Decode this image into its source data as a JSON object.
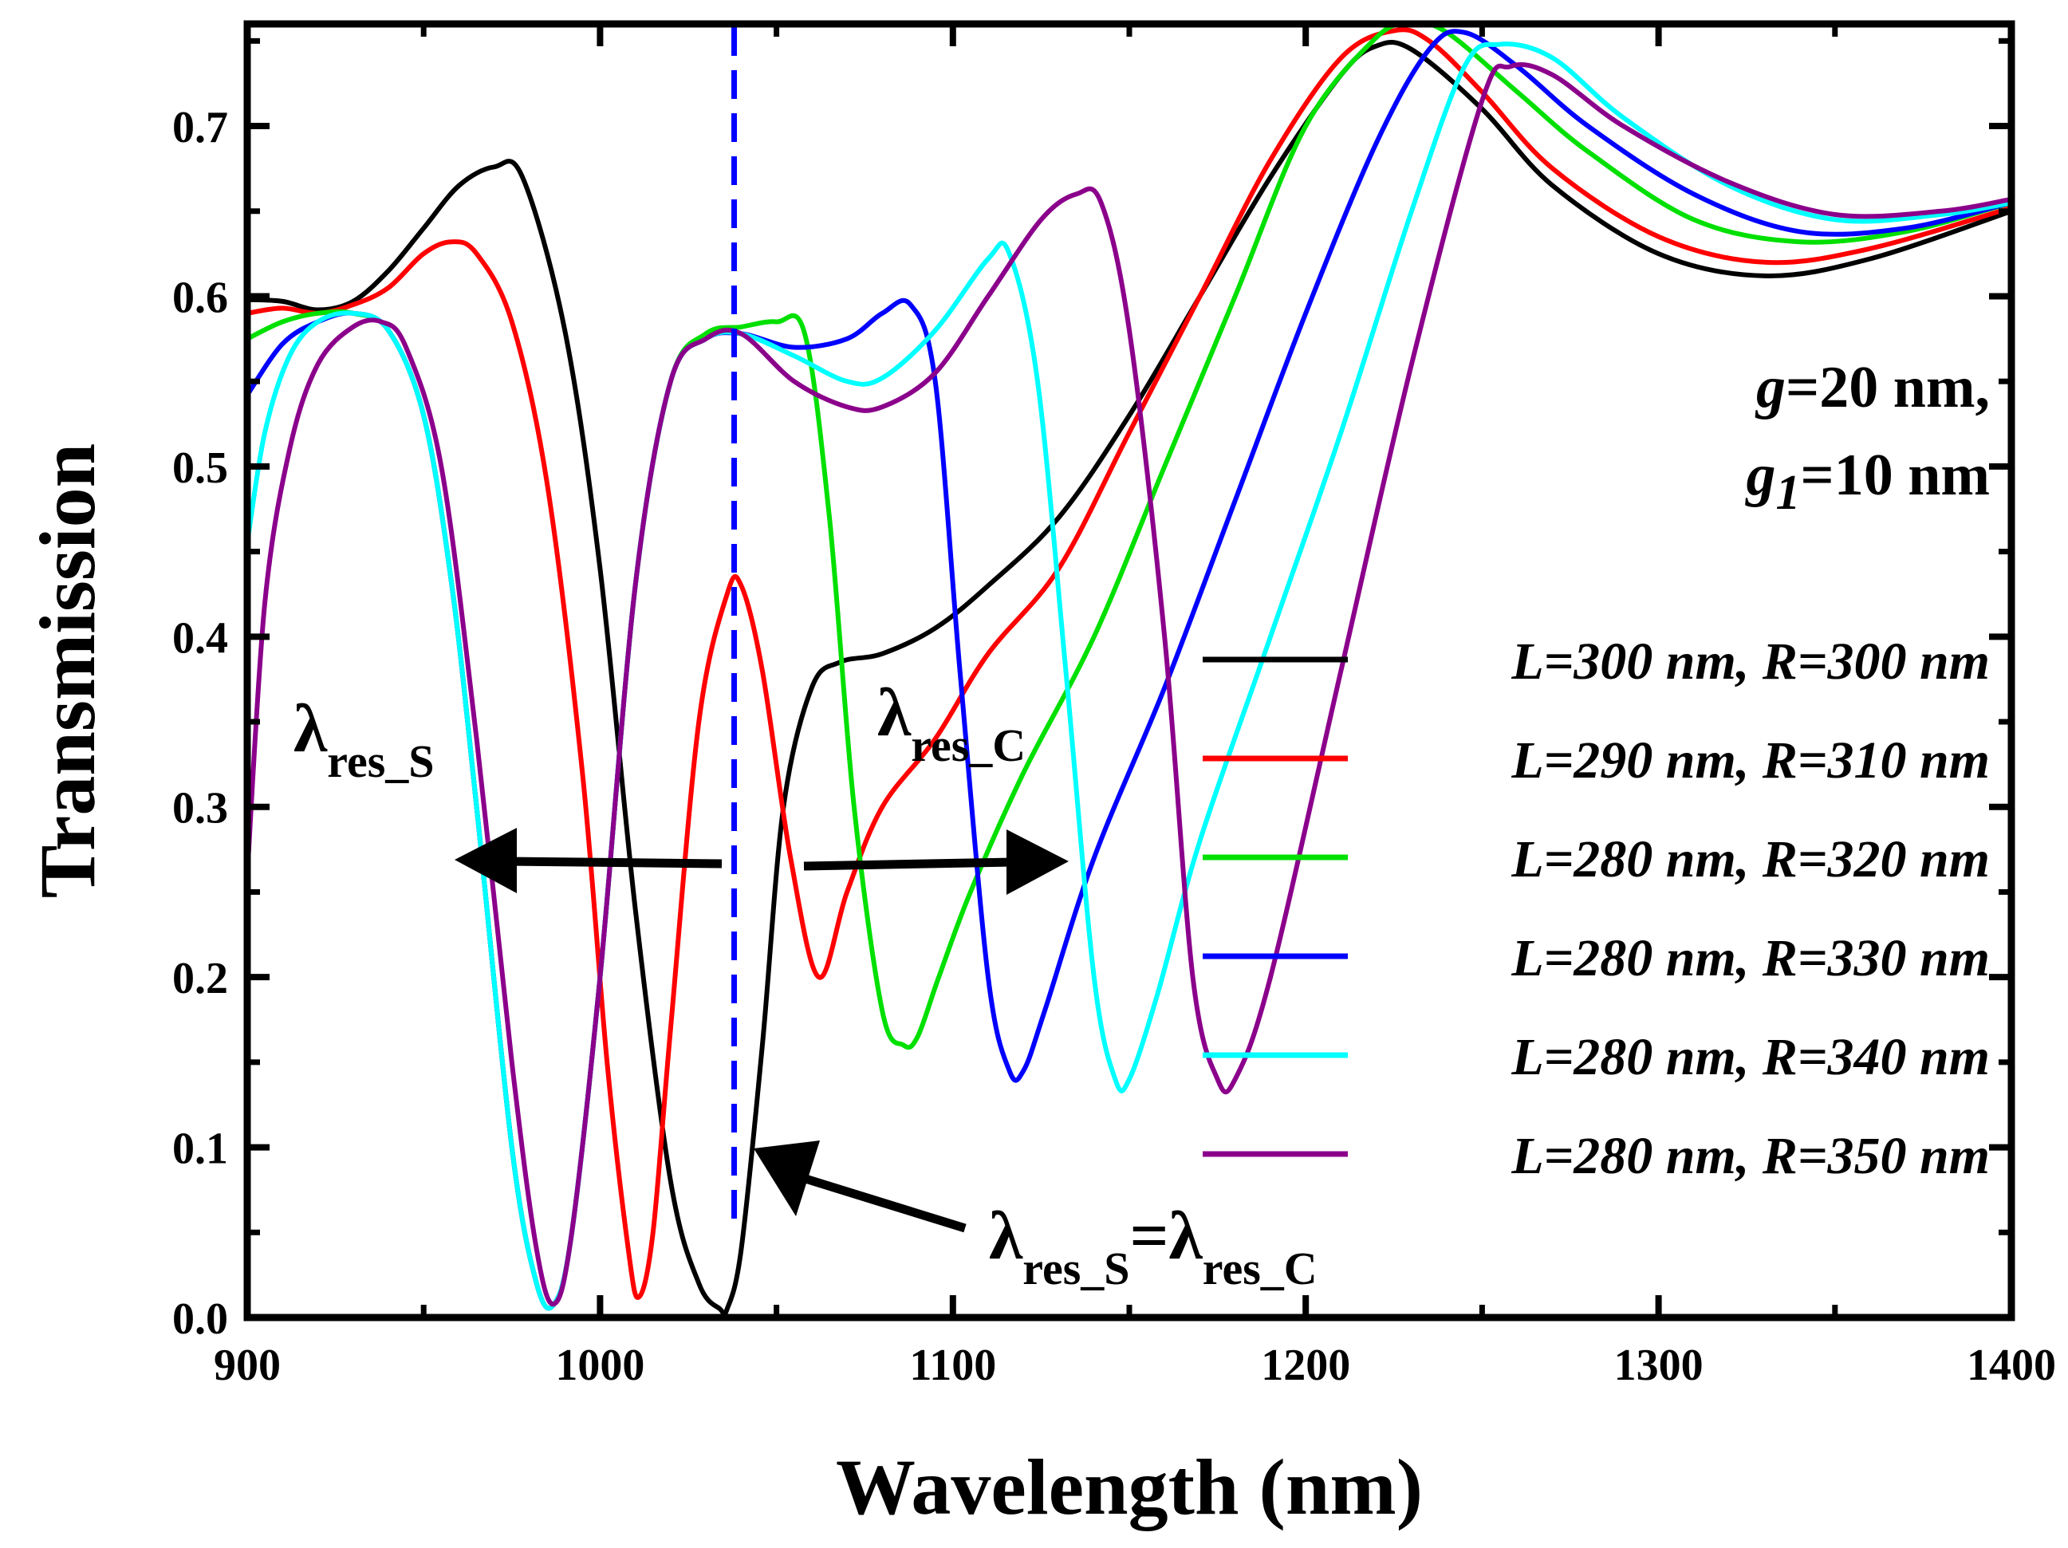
{
  "chart_data": {
    "type": "line",
    "title": "",
    "xlabel": "Wavelength (nm)",
    "ylabel": "Transmission",
    "xlim": [
      900,
      1400
    ],
    "ylim": [
      0.0,
      0.76
    ],
    "xticks": [
      900,
      1000,
      1100,
      1200,
      1300,
      1400
    ],
    "yticks": [
      0.0,
      0.1,
      0.2,
      0.3,
      0.4,
      0.5,
      0.6,
      0.7
    ],
    "grid": false,
    "legend_position": "right",
    "series": [
      {
        "name": "L=300 nm, R=300 nm",
        "color": "#000000",
        "x": [
          900,
          910,
          920,
          930,
          940,
          950,
          960,
          970,
          978,
          990,
          1000,
          1010,
          1020,
          1028,
          1034,
          1036,
          1040,
          1046,
          1052,
          1060,
          1068,
          1080,
          1095,
          1110,
          1130,
          1150,
          1170,
          1190,
          1210,
          1220,
          1230,
          1250,
          1270,
          1300,
          1330,
          1360,
          1400
        ],
        "y": [
          0.598,
          0.597,
          0.592,
          0.597,
          0.615,
          0.64,
          0.665,
          0.676,
          0.67,
          0.58,
          0.44,
          0.24,
          0.08,
          0.02,
          0.005,
          0.005,
          0.04,
          0.16,
          0.3,
          0.37,
          0.385,
          0.39,
          0.405,
          0.43,
          0.47,
          0.53,
          0.6,
          0.67,
          0.73,
          0.747,
          0.745,
          0.71,
          0.665,
          0.625,
          0.612,
          0.622,
          0.65
        ]
      },
      {
        "name": "L=290 nm, R=310 nm",
        "color": "#FF0000",
        "x": [
          900,
          910,
          920,
          930,
          940,
          950,
          958,
          965,
          975,
          985,
          995,
          1002,
          1008,
          1011,
          1015,
          1020,
          1028,
          1036,
          1040,
          1046,
          1054,
          1062,
          1070,
          1080,
          1095,
          1110,
          1130,
          1150,
          1170,
          1190,
          1210,
          1225,
          1235,
          1250,
          1270,
          1300,
          1330,
          1360,
          1400
        ],
        "y": [
          0.59,
          0.593,
          0.59,
          0.595,
          0.605,
          0.625,
          0.632,
          0.625,
          0.585,
          0.49,
          0.32,
          0.15,
          0.04,
          0.012,
          0.05,
          0.17,
          0.35,
          0.425,
          0.43,
          0.38,
          0.27,
          0.2,
          0.25,
          0.3,
          0.34,
          0.39,
          0.44,
          0.52,
          0.6,
          0.68,
          0.74,
          0.756,
          0.75,
          0.72,
          0.675,
          0.635,
          0.62,
          0.628,
          0.652
        ]
      },
      {
        "name": "L=280 nm, R=320 nm",
        "color": "#00E000",
        "x": [
          900,
          910,
          920,
          930,
          940,
          950,
          958,
          965,
          975,
          982,
          987,
          992,
          1000,
          1010,
          1020,
          1030,
          1040,
          1050,
          1058,
          1065,
          1072,
          1080,
          1086,
          1090,
          1096,
          1105,
          1120,
          1140,
          1160,
          1180,
          1200,
          1220,
          1230,
          1240,
          1260,
          1280,
          1310,
          1340,
          1370,
          1400
        ],
        "y": [
          0.575,
          0.585,
          0.59,
          0.59,
          0.58,
          0.53,
          0.43,
          0.3,
          0.1,
          0.02,
          0.008,
          0.05,
          0.2,
          0.43,
          0.55,
          0.578,
          0.582,
          0.585,
          0.578,
          0.47,
          0.3,
          0.18,
          0.16,
          0.165,
          0.2,
          0.25,
          0.32,
          0.4,
          0.5,
          0.6,
          0.7,
          0.752,
          0.76,
          0.755,
          0.72,
          0.685,
          0.645,
          0.632,
          0.638,
          0.655
        ]
      },
      {
        "name": "L=280 nm, R=330 nm",
        "color": "#0000FF",
        "x": [
          900,
          910,
          920,
          930,
          940,
          950,
          958,
          965,
          975,
          982,
          987,
          992,
          1000,
          1010,
          1020,
          1030,
          1040,
          1055,
          1070,
          1080,
          1088,
          1095,
          1102,
          1110,
          1116,
          1120,
          1126,
          1140,
          1160,
          1180,
          1200,
          1220,
          1235,
          1245,
          1260,
          1280,
          1310,
          1340,
          1370,
          1400
        ],
        "y": [
          0.542,
          0.572,
          0.585,
          0.59,
          0.58,
          0.53,
          0.43,
          0.3,
          0.1,
          0.02,
          0.008,
          0.05,
          0.2,
          0.43,
          0.55,
          0.575,
          0.578,
          0.57,
          0.575,
          0.59,
          0.595,
          0.55,
          0.38,
          0.2,
          0.145,
          0.145,
          0.18,
          0.27,
          0.37,
          0.48,
          0.59,
          0.69,
          0.745,
          0.755,
          0.735,
          0.7,
          0.66,
          0.638,
          0.64,
          0.655
        ]
      },
      {
        "name": "L=280 nm, R=340 nm",
        "color": "#00FFFF",
        "x": [
          900,
          905,
          912,
          920,
          930,
          940,
          950,
          958,
          965,
          975,
          982,
          987,
          992,
          1000,
          1010,
          1020,
          1030,
          1040,
          1055,
          1070,
          1080,
          1095,
          1110,
          1116,
          1124,
          1132,
          1140,
          1146,
          1150,
          1158,
          1170,
          1190,
          1210,
          1230,
          1245,
          1255,
          1270,
          1290,
          1320,
          1350,
          1380,
          1400
        ],
        "y": [
          0.455,
          0.52,
          0.565,
          0.585,
          0.59,
          0.58,
          0.53,
          0.43,
          0.3,
          0.1,
          0.02,
          0.008,
          0.05,
          0.2,
          0.43,
          0.55,
          0.575,
          0.578,
          0.565,
          0.55,
          0.552,
          0.58,
          0.622,
          0.625,
          0.55,
          0.38,
          0.2,
          0.14,
          0.14,
          0.19,
          0.28,
          0.4,
          0.52,
          0.65,
          0.735,
          0.748,
          0.74,
          0.705,
          0.665,
          0.645,
          0.648,
          0.655
        ]
      },
      {
        "name": "L=280 nm, R=350 nm",
        "color": "#8B008B",
        "x": [
          900,
          905,
          912,
          920,
          930,
          938,
          945,
          955,
          965,
          975,
          982,
          987,
          992,
          1000,
          1010,
          1020,
          1030,
          1040,
          1055,
          1070,
          1080,
          1095,
          1110,
          1125,
          1135,
          1142,
          1150,
          1160,
          1168,
          1175,
          1180,
          1190,
          1210,
          1230,
          1250,
          1258,
          1270,
          1290,
          1320,
          1350,
          1380,
          1400
        ],
        "y": [
          0.26,
          0.42,
          0.51,
          0.56,
          0.582,
          0.585,
          0.57,
          0.5,
          0.34,
          0.15,
          0.04,
          0.008,
          0.05,
          0.2,
          0.43,
          0.55,
          0.575,
          0.578,
          0.55,
          0.535,
          0.535,
          0.555,
          0.6,
          0.645,
          0.66,
          0.655,
          0.58,
          0.4,
          0.2,
          0.14,
          0.14,
          0.2,
          0.38,
          0.56,
          0.715,
          0.735,
          0.73,
          0.7,
          0.667,
          0.648,
          0.65,
          0.657
        ]
      }
    ],
    "reference_line": {
      "x": 1038,
      "color": "#0000FF",
      "style": "dashed"
    },
    "annotations": {
      "params_line1": {
        "italic": "g",
        "rest": "=20 nm,"
      },
      "params_line2": {
        "italic": "g",
        "subscript": "1",
        "rest": "=10 nm"
      },
      "lambda_symbol": "λ",
      "res_s_subscript": "res_S",
      "res_c_subscript": "res_C",
      "equals_sign": "="
    }
  }
}
